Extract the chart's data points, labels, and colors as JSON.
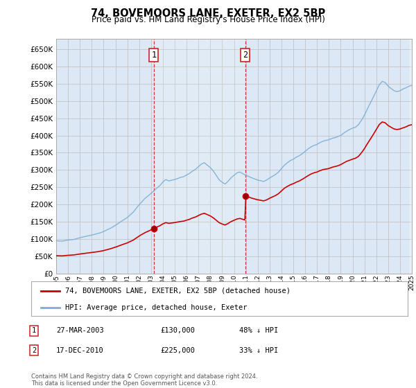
{
  "title": "74, BOVEMOORS LANE, EXETER, EX2 5BP",
  "subtitle": "Price paid vs. HM Land Registry's House Price Index (HPI)",
  "ylim": [
    0,
    680000
  ],
  "yticks": [
    0,
    50000,
    100000,
    150000,
    200000,
    250000,
    300000,
    350000,
    400000,
    450000,
    500000,
    550000,
    600000,
    650000
  ],
  "background_color": "#ffffff",
  "plot_bg_color": "#dce8f5",
  "grid_color": "#bbbbbb",
  "hpi_color": "#7aafd4",
  "price_color": "#cc0000",
  "sale1_date": 2003.23,
  "sale1_price": 130000,
  "sale2_date": 2010.96,
  "sale2_price": 225000,
  "legend_line1": "74, BOVEMOORS LANE, EXETER, EX2 5BP (detached house)",
  "legend_line2": "HPI: Average price, detached house, Exeter",
  "table_row1": [
    "1",
    "27-MAR-2003",
    "£130,000",
    "48% ↓ HPI"
  ],
  "table_row2": [
    "2",
    "17-DEC-2010",
    "£225,000",
    "33% ↓ HPI"
  ],
  "footnote": "Contains HM Land Registry data © Crown copyright and database right 2024.\nThis data is licensed under the Open Government Licence v3.0.",
  "xmin": 1995,
  "xmax": 2025,
  "hpi_knots": [
    [
      1995.0,
      95000
    ],
    [
      1995.5,
      94000
    ],
    [
      1996.0,
      97000
    ],
    [
      1996.5,
      99000
    ],
    [
      1997.0,
      104000
    ],
    [
      1997.5,
      108000
    ],
    [
      1998.0,
      112000
    ],
    [
      1998.5,
      116000
    ],
    [
      1999.0,
      122000
    ],
    [
      1999.5,
      130000
    ],
    [
      2000.0,
      140000
    ],
    [
      2000.5,
      152000
    ],
    [
      2001.0,
      163000
    ],
    [
      2001.5,
      178000
    ],
    [
      2002.0,
      200000
    ],
    [
      2002.5,
      218000
    ],
    [
      2003.0,
      232000
    ],
    [
      2003.25,
      240000
    ],
    [
      2003.5,
      248000
    ],
    [
      2003.75,
      255000
    ],
    [
      2004.0,
      265000
    ],
    [
      2004.25,
      272000
    ],
    [
      2004.5,
      268000
    ],
    [
      2004.75,
      270000
    ],
    [
      2005.0,
      272000
    ],
    [
      2005.25,
      275000
    ],
    [
      2005.5,
      278000
    ],
    [
      2005.75,
      280000
    ],
    [
      2006.0,
      285000
    ],
    [
      2006.25,
      290000
    ],
    [
      2006.5,
      297000
    ],
    [
      2006.75,
      302000
    ],
    [
      2007.0,
      310000
    ],
    [
      2007.25,
      318000
    ],
    [
      2007.5,
      322000
    ],
    [
      2007.75,
      315000
    ],
    [
      2008.0,
      308000
    ],
    [
      2008.25,
      298000
    ],
    [
      2008.5,
      285000
    ],
    [
      2008.75,
      272000
    ],
    [
      2009.0,
      265000
    ],
    [
      2009.25,
      260000
    ],
    [
      2009.5,
      268000
    ],
    [
      2009.75,
      278000
    ],
    [
      2010.0,
      285000
    ],
    [
      2010.25,
      292000
    ],
    [
      2010.5,
      295000
    ],
    [
      2010.75,
      290000
    ],
    [
      2011.0,
      285000
    ],
    [
      2011.25,
      282000
    ],
    [
      2011.5,
      278000
    ],
    [
      2011.75,
      275000
    ],
    [
      2012.0,
      272000
    ],
    [
      2012.25,
      270000
    ],
    [
      2012.5,
      268000
    ],
    [
      2012.75,
      272000
    ],
    [
      2013.0,
      278000
    ],
    [
      2013.25,
      283000
    ],
    [
      2013.5,
      288000
    ],
    [
      2013.75,
      295000
    ],
    [
      2014.0,
      305000
    ],
    [
      2014.25,
      315000
    ],
    [
      2014.5,
      322000
    ],
    [
      2014.75,
      328000
    ],
    [
      2015.0,
      332000
    ],
    [
      2015.25,
      338000
    ],
    [
      2015.5,
      342000
    ],
    [
      2015.75,
      348000
    ],
    [
      2016.0,
      355000
    ],
    [
      2016.25,
      362000
    ],
    [
      2016.5,
      368000
    ],
    [
      2016.75,
      372000
    ],
    [
      2017.0,
      375000
    ],
    [
      2017.25,
      380000
    ],
    [
      2017.5,
      384000
    ],
    [
      2017.75,
      386000
    ],
    [
      2018.0,
      388000
    ],
    [
      2018.25,
      392000
    ],
    [
      2018.5,
      395000
    ],
    [
      2018.75,
      398000
    ],
    [
      2019.0,
      402000
    ],
    [
      2019.25,
      408000
    ],
    [
      2019.5,
      414000
    ],
    [
      2019.75,
      418000
    ],
    [
      2020.0,
      422000
    ],
    [
      2020.25,
      425000
    ],
    [
      2020.5,
      432000
    ],
    [
      2020.75,
      445000
    ],
    [
      2021.0,
      460000
    ],
    [
      2021.25,
      478000
    ],
    [
      2021.5,
      495000
    ],
    [
      2021.75,
      512000
    ],
    [
      2022.0,
      530000
    ],
    [
      2022.25,
      548000
    ],
    [
      2022.5,
      558000
    ],
    [
      2022.75,
      555000
    ],
    [
      2023.0,
      545000
    ],
    [
      2023.25,
      538000
    ],
    [
      2023.5,
      532000
    ],
    [
      2023.75,
      530000
    ],
    [
      2024.0,
      532000
    ],
    [
      2024.25,
      536000
    ],
    [
      2024.5,
      540000
    ],
    [
      2024.75,
      545000
    ],
    [
      2025.0,
      548000
    ]
  ]
}
